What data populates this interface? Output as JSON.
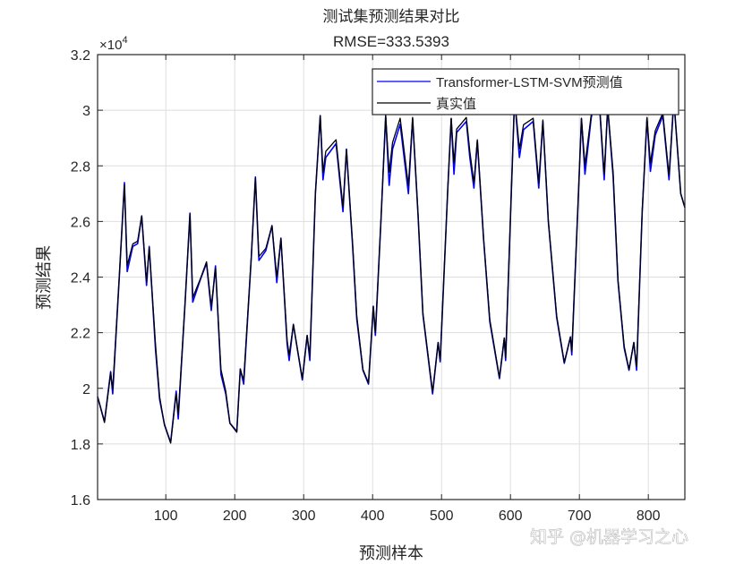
{
  "chart_data": {
    "type": "line",
    "title": "测试集预测结果对比",
    "subtitle": "RMSE=333.5393",
    "xlabel": "预测样本",
    "ylabel": "预测结果",
    "y_exponent_label": "×10",
    "y_exponent_power": "4",
    "xlim": [
      1,
      853
    ],
    "ylim": [
      16000,
      32000
    ],
    "xticks": [
      100,
      200,
      300,
      400,
      500,
      600,
      700,
      800
    ],
    "yticks": [
      16000,
      18000,
      20000,
      22000,
      24000,
      26000,
      28000,
      30000,
      32000
    ],
    "ytick_labels": [
      "1.6",
      "1.8",
      "2",
      "2.2",
      "2.4",
      "2.6",
      "2.8",
      "3",
      "3.2"
    ],
    "grid": true,
    "legend_position": "top-right",
    "x": [
      1,
      11,
      20,
      23,
      33,
      40,
      44,
      52,
      59,
      65,
      72,
      76,
      85,
      91,
      98,
      107,
      115,
      118,
      128,
      135,
      139,
      150,
      159,
      166,
      172,
      180,
      187,
      193,
      203,
      208,
      213,
      224,
      230,
      235,
      245,
      254,
      261,
      267,
      276,
      279,
      285,
      298,
      305,
      309,
      317,
      324,
      328,
      332,
      347,
      357,
      362,
      371,
      377,
      386,
      394,
      401,
      404,
      412,
      419,
      424,
      429,
      440,
      452,
      458,
      466,
      473,
      487,
      495,
      498,
      509,
      514,
      518,
      522,
      536,
      541,
      547,
      552,
      561,
      570,
      584,
      591,
      593,
      601,
      606,
      613,
      619,
      633,
      641,
      647,
      655,
      667,
      678,
      687,
      689,
      698,
      703,
      708,
      717,
      727,
      736,
      741,
      749,
      756,
      765,
      772,
      779,
      783,
      791,
      798,
      803,
      810,
      821,
      830,
      837,
      847,
      853
    ],
    "series": [
      {
        "name": "Transformer-LSTM-SVM预测值",
        "color": "#0000ff",
        "values": [
          19700,
          18800,
          20600,
          19800,
          24200,
          27400,
          24200,
          25100,
          25200,
          26200,
          23700,
          25100,
          21400,
          19600,
          18700,
          18050,
          19900,
          18900,
          23100,
          26300,
          23100,
          23900,
          24500,
          22800,
          24400,
          20500,
          19800,
          18750,
          18450,
          20700,
          20150,
          24700,
          27600,
          24600,
          24950,
          25850,
          23800,
          25400,
          21600,
          21000,
          22300,
          20300,
          21900,
          21000,
          27000,
          29800,
          27500,
          28300,
          28800,
          26350,
          28600,
          25100,
          22500,
          20650,
          20150,
          22950,
          21900,
          26000,
          29800,
          27300,
          28600,
          29500,
          27000,
          29700,
          26200,
          22650,
          19800,
          21650,
          20950,
          27100,
          29700,
          27700,
          29200,
          29600,
          28300,
          27200,
          28900,
          25350,
          22400,
          20350,
          21800,
          21000,
          26900,
          30450,
          28300,
          29300,
          29600,
          27200,
          29600,
          26000,
          22550,
          20900,
          21850,
          21200,
          26650,
          29700,
          27700,
          29700,
          31000,
          27500,
          30100,
          27600,
          23850,
          21450,
          20650,
          21650,
          20650,
          26300,
          29700,
          27800,
          29100,
          29800,
          27500,
          30400,
          27000,
          26500
        ]
      },
      {
        "name": "真实值",
        "color": "#000000",
        "values": [
          19700,
          18770,
          20550,
          19960,
          24220,
          27320,
          24420,
          25190,
          25290,
          26200,
          23840,
          25060,
          21580,
          19700,
          18680,
          18030,
          19810,
          19060,
          23130,
          26260,
          23260,
          23930,
          24550,
          22940,
          24320,
          20680,
          19900,
          18740,
          18420,
          20680,
          20290,
          24740,
          27550,
          24740,
          25030,
          25840,
          24000,
          25390,
          21740,
          21190,
          22290,
          20350,
          21900,
          21160,
          27000,
          29810,
          27770,
          28520,
          28940,
          26520,
          28580,
          25190,
          22610,
          20680,
          20190,
          22940,
          22000,
          26030,
          29810,
          27770,
          28840,
          29710,
          27290,
          29740,
          26260,
          22710,
          19870,
          21640,
          21030,
          27130,
          29710,
          28100,
          29320,
          29740,
          28520,
          27390,
          28940,
          25390,
          22480,
          20390,
          21810,
          21100,
          26900,
          30450,
          28610,
          29480,
          29710,
          27390,
          29650,
          26030,
          22610,
          20940,
          21840,
          21320,
          26680,
          29710,
          28030,
          29810,
          31030,
          27710,
          30130,
          27770,
          23900,
          21520,
          20680,
          21640,
          20780,
          26350,
          29740,
          28100,
          29260,
          29900,
          27650,
          30390,
          27000,
          26500
        ]
      }
    ]
  },
  "watermark": "知乎 @机器学习之心"
}
